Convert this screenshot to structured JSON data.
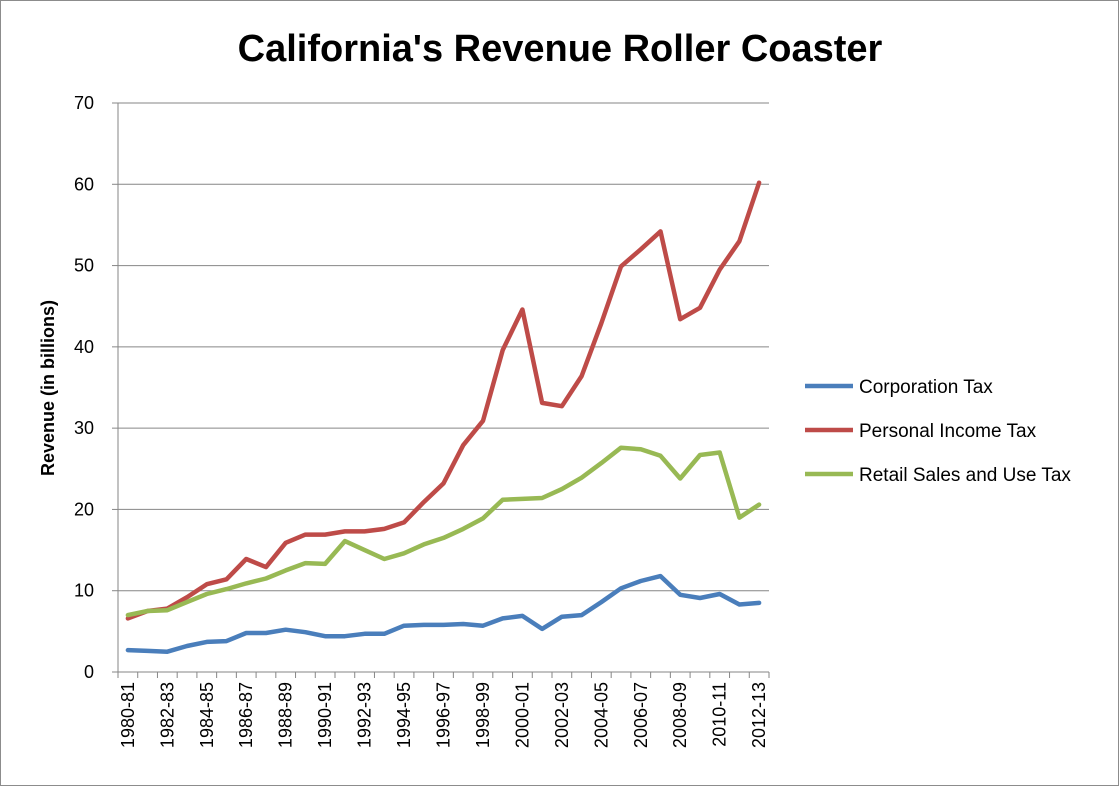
{
  "chart_data": {
    "type": "line",
    "title": "California's Revenue Roller Coaster",
    "xlabel": "",
    "ylabel": "Revenue (in billions)",
    "ylim": [
      0,
      70
    ],
    "yticks": [
      0,
      10,
      20,
      30,
      40,
      50,
      60,
      70
    ],
    "grid": "horizontal",
    "legend_position": "right",
    "categories": [
      "1980-81",
      "1981-82",
      "1982-83",
      "1983-84",
      "1984-85",
      "1985-86",
      "1986-87",
      "1987-88",
      "1988-89",
      "1989-90",
      "1990-91",
      "1991-92",
      "1992-93",
      "1993-94",
      "1994-95",
      "1995-96",
      "1996-97",
      "1997-98",
      "1998-99",
      "1999-00",
      "2000-01",
      "2001-02",
      "2002-03",
      "2003-04",
      "2004-05",
      "2005-06",
      "2006-07",
      "2007-08",
      "2008-09",
      "2009-10",
      "2010-11",
      "2011-12",
      "2012-13"
    ],
    "tick_labels": [
      "1980-81",
      "1982-83",
      "1984-85",
      "1986-87",
      "1988-89",
      "1990-91",
      "1992-93",
      "1994-95",
      "1996-97",
      "1998-99",
      "2000-01",
      "2002-03",
      "2004-05",
      "2006-07",
      "2008-09",
      "2010-11",
      "2012-13"
    ],
    "series": [
      {
        "name": "Corporation Tax",
        "color": "#4a7ebb",
        "values": [
          2.7,
          2.6,
          2.5,
          3.2,
          3.7,
          3.8,
          4.8,
          4.8,
          5.2,
          4.9,
          4.4,
          4.4,
          4.7,
          4.7,
          5.7,
          5.8,
          5.8,
          5.9,
          5.7,
          6.6,
          6.9,
          5.3,
          6.8,
          7.0,
          8.6,
          10.3,
          11.2,
          11.8,
          9.5,
          9.1,
          9.6,
          8.3,
          8.5
        ]
      },
      {
        "name": "Personal Income Tax",
        "color": "#be4b48",
        "values": [
          6.6,
          7.5,
          7.8,
          9.2,
          10.8,
          11.4,
          13.9,
          12.9,
          15.9,
          16.9,
          16.9,
          17.3,
          17.3,
          17.6,
          18.4,
          20.9,
          23.2,
          27.9,
          30.9,
          39.6,
          44.6,
          33.1,
          32.7,
          36.4,
          42.9,
          49.9,
          52.0,
          54.2,
          43.4,
          44.8,
          49.5,
          53.0,
          60.2
        ]
      },
      {
        "name": "Retail Sales and Use Tax",
        "color": "#98b954",
        "values": [
          7.0,
          7.5,
          7.6,
          8.6,
          9.6,
          10.2,
          10.9,
          11.5,
          12.5,
          13.4,
          13.3,
          16.1,
          15.0,
          13.9,
          14.6,
          15.7,
          16.5,
          17.6,
          18.9,
          21.2,
          21.3,
          21.4,
          22.5,
          23.9,
          25.7,
          27.6,
          27.4,
          26.6,
          23.8,
          26.7,
          27.0,
          19.0,
          20.6
        ]
      }
    ]
  }
}
